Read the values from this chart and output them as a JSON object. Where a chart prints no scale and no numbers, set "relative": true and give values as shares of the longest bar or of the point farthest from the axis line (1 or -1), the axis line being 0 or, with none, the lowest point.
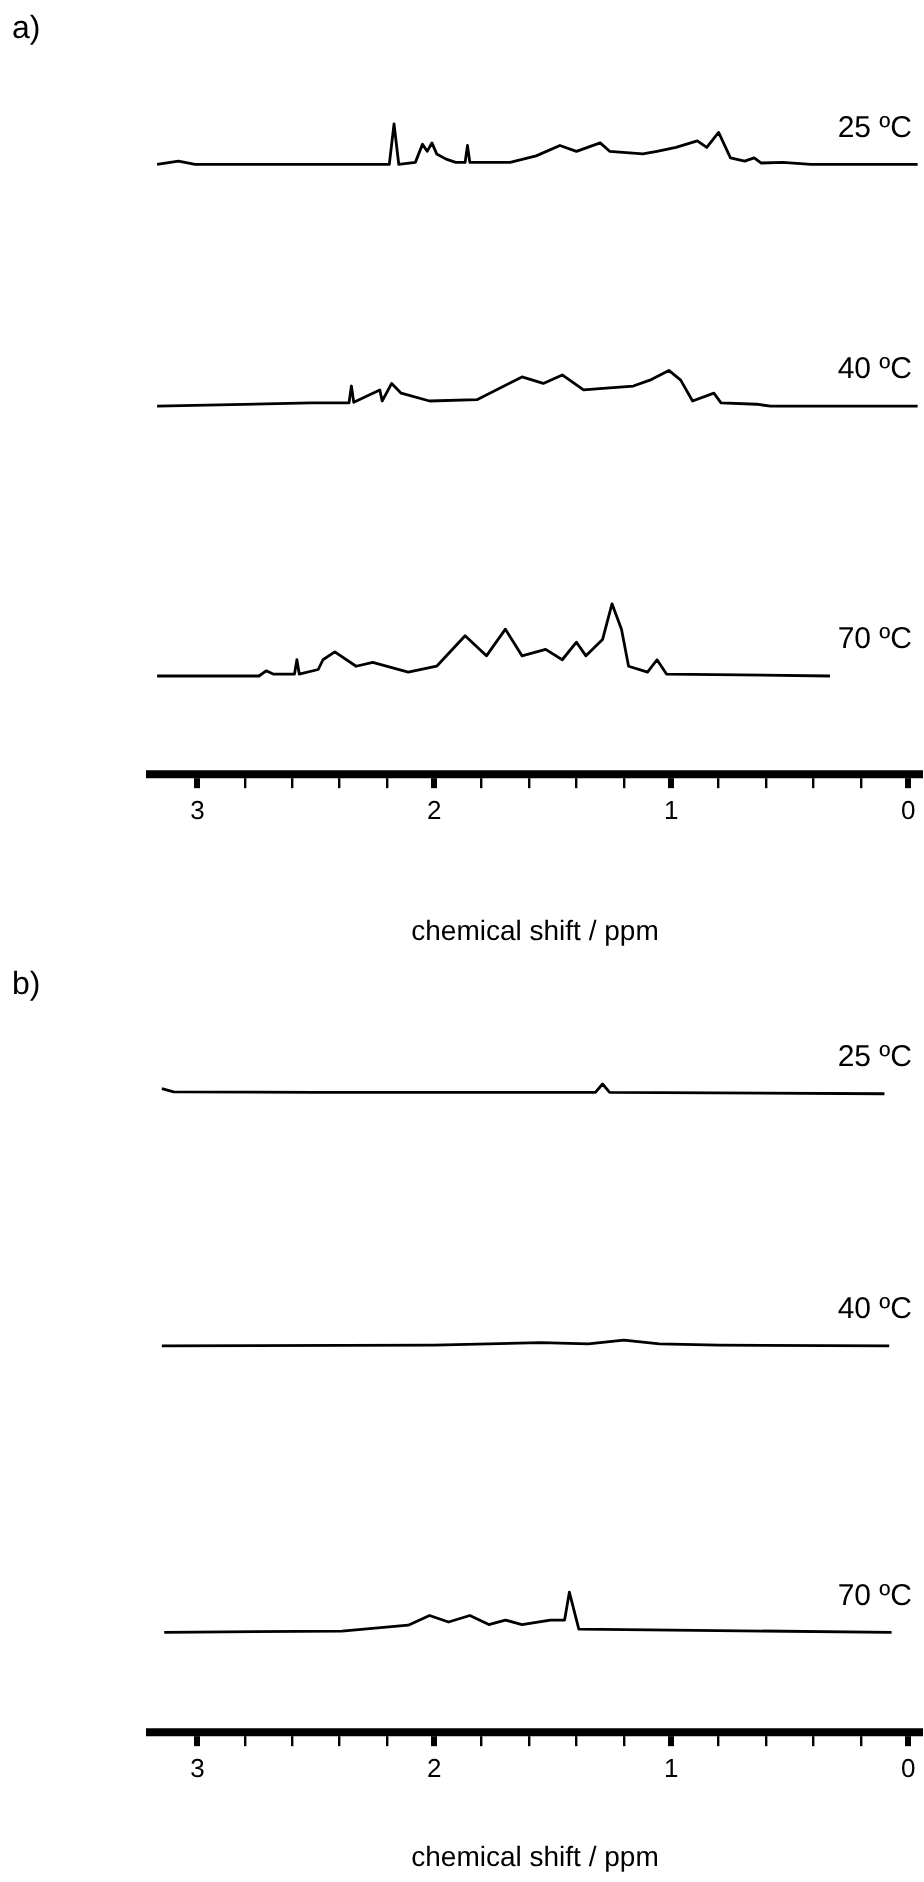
{
  "chart_data": [
    {
      "type": "line",
      "title": "a)",
      "relative": true,
      "xlim": [
        3.2,
        -0.05
      ],
      "xlabel": "chemical shift / ppm",
      "xticks": [
        3,
        {
          "value": 2.8,
          "label": null
        },
        {
          "value": 2.6,
          "label": null
        },
        {
          "value": 2.4,
          "label": null
        },
        {
          "value": 2.2,
          "label": null
        },
        2,
        {
          "value": 1.8,
          "label": null
        },
        {
          "value": 1.6,
          "label": null
        },
        {
          "value": 1.4,
          "label": null
        },
        {
          "value": 1.2,
          "label": null
        },
        1,
        {
          "value": 0.8,
          "label": null
        },
        {
          "value": 0.6,
          "label": null
        },
        {
          "value": 0.4,
          "label": null
        },
        {
          "value": 0.2,
          "label": null
        },
        0
      ],
      "series": [
        {
          "name": "25 ºC",
          "color": "#000000",
          "x": [
            3.17,
            3.08,
            3.01,
            2.19,
            2.17,
            2.15,
            2.08,
            2.05,
            2.03,
            2.01,
            1.99,
            1.95,
            1.91,
            1.87,
            1.86,
            1.85,
            1.68,
            1.57,
            1.47,
            1.4,
            1.3,
            1.26,
            1.12,
            1.06,
            0.98,
            0.89,
            0.85,
            0.8,
            0.75,
            0.69,
            0.65,
            0.62,
            0.53,
            0.41,
            -0.04
          ],
          "values": [
            0.938,
            0.943,
            0.938,
            0.938,
            1,
            0.938,
            0.941,
            0.969,
            0.958,
            0.971,
            0.954,
            0.946,
            0.941,
            0.941,
            0.967,
            0.941,
            0.941,
            0.951,
            0.967,
            0.958,
            0.971,
            0.958,
            0.954,
            0.958,
            0.964,
            0.974,
            0.964,
            0.987,
            0.948,
            0.943,
            0.948,
            0.94,
            0.941,
            0.938,
            0.938
          ]
        },
        {
          "name": "40 ºC",
          "color": "#000000",
          "x": [
            3.17,
            2.52,
            2.36,
            2.35,
            2.34,
            2.23,
            2.22,
            2.18,
            2.14,
            2.02,
            1.82,
            1.63,
            1.54,
            1.46,
            1.37,
            1.26,
            1.16,
            1.09,
            1.01,
            0.96,
            0.91,
            0.82,
            0.79,
            0.64,
            0.58,
            -0.04
          ],
          "values": [
            0.566,
            0.571,
            0.571,
            0.597,
            0.572,
            0.591,
            0.574,
            0.601,
            0.586,
            0.574,
            0.576,
            0.611,
            0.601,
            0.614,
            0.591,
            0.594,
            0.597,
            0.606,
            0.621,
            0.606,
            0.574,
            0.586,
            0.571,
            0.569,
            0.566,
            0.566
          ]
        },
        {
          "name": "70 ºC",
          "color": "#000000",
          "x": [
            3.17,
            2.74,
            2.71,
            2.68,
            2.59,
            2.58,
            2.57,
            2.49,
            2.47,
            2.42,
            2.33,
            2.26,
            2.11,
            1.99,
            1.87,
            1.78,
            1.7,
            1.63,
            1.53,
            1.46,
            1.4,
            1.36,
            1.29,
            1.25,
            1.21,
            1.18,
            1.1,
            1.06,
            1.02,
            0.33
          ],
          "values": [
            0.151,
            0.151,
            0.159,
            0.154,
            0.154,
            0.176,
            0.154,
            0.161,
            0.176,
            0.188,
            0.166,
            0.172,
            0.157,
            0.166,
            0.213,
            0.182,
            0.223,
            0.182,
            0.192,
            0.176,
            0.203,
            0.182,
            0.207,
            0.262,
            0.223,
            0.166,
            0.157,
            0.176,
            0.154,
            0.151
          ]
        }
      ]
    },
    {
      "type": "line",
      "title": "b)",
      "relative": true,
      "xlim": [
        3.2,
        -0.05
      ],
      "xlabel": "chemical shift / ppm",
      "xticks": [
        3,
        {
          "value": 2.8,
          "label": null
        },
        {
          "value": 2.6,
          "label": null
        },
        {
          "value": 2.4,
          "label": null
        },
        {
          "value": 2.2,
          "label": null
        },
        2,
        {
          "value": 1.8,
          "label": null
        },
        {
          "value": 1.6,
          "label": null
        },
        {
          "value": 1.4,
          "label": null
        },
        {
          "value": 1.2,
          "label": null
        },
        1,
        {
          "value": 0.8,
          "label": null
        },
        {
          "value": 0.6,
          "label": null
        },
        {
          "value": 0.4,
          "label": null
        },
        {
          "value": 0.2,
          "label": null
        },
        0
      ],
      "series": [
        {
          "name": "25 ºC",
          "color": "#000000",
          "x": [
            3.15,
            3.1,
            2.5,
            1.32,
            1.29,
            1.26,
            0.1
          ],
          "values": [
            0.993,
            0.988,
            0.987,
            0.987,
            1,
            0.987,
            0.985
          ]
        },
        {
          "name": "40 ºC",
          "color": "#000000",
          "x": [
            3.15,
            2.0,
            1.55,
            1.35,
            1.2,
            1.05,
            0.8,
            0.08
          ],
          "values": [
            0.596,
            0.597,
            0.601,
            0.599,
            0.605,
            0.599,
            0.597,
            0.596
          ]
        },
        {
          "name": "70 ºC",
          "color": "#000000",
          "x": [
            3.14,
            2.39,
            2.11,
            2.02,
            1.94,
            1.85,
            1.77,
            1.7,
            1.63,
            1.51,
            1.45,
            1.43,
            1.39,
            0.07
          ],
          "values": [
            0.154,
            0.156,
            0.165,
            0.18,
            0.17,
            0.18,
            0.166,
            0.173,
            0.166,
            0.173,
            0.173,
            0.216,
            0.159,
            0.154
          ]
        }
      ]
    }
  ]
}
